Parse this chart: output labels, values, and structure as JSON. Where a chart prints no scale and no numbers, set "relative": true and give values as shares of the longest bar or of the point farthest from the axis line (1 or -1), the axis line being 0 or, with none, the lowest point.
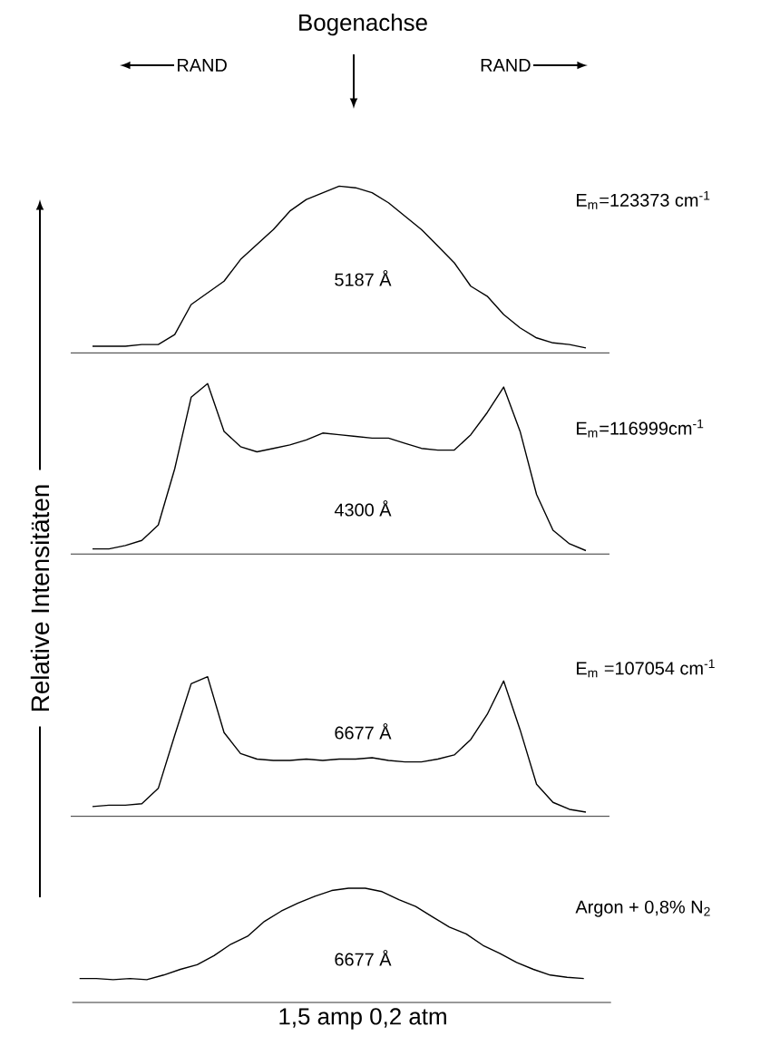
{
  "chart_data": [
    {
      "type": "line",
      "relative": true,
      "title": "Bogenachse",
      "ylabel": "Relative Intensitäten",
      "color": "#000000",
      "categories": [
        null,
        null,
        null,
        null,
        null,
        null,
        null,
        null,
        null,
        null,
        null,
        null,
        null,
        null,
        null,
        null,
        null,
        null,
        null,
        null,
        null,
        null,
        null,
        null,
        null,
        null,
        null,
        null,
        null,
        null,
        null
      ],
      "values": [
        0.04,
        0.04,
        0.04,
        0.05,
        0.05,
        0.11,
        0.29,
        0.36,
        0.43,
        0.56,
        0.65,
        0.74,
        0.85,
        0.92,
        0.96,
        1,
        0.99,
        0.96,
        0.9,
        0.82,
        0.74,
        0.64,
        0.54,
        0.4,
        0.34,
        0.23,
        0.15,
        0.09,
        0.06,
        0.05,
        0.03
      ],
      "annotations": [
        "RAND",
        "RAND",
        "5187 Å",
        "E$_{m}$=123373 cm$^{-1}$"
      ]
    },
    {
      "type": "line",
      "relative": true,
      "color": "#000000",
      "categories": [
        null,
        null,
        null,
        null,
        null,
        null,
        null,
        null,
        null,
        null,
        null,
        null,
        null,
        null,
        null,
        null,
        null,
        null,
        null,
        null,
        null,
        null,
        null,
        null,
        null,
        null,
        null,
        null,
        null,
        null,
        null
      ],
      "values": [
        0.03,
        0.03,
        0.05,
        0.08,
        0.17,
        0.5,
        0.92,
        1,
        0.72,
        0.63,
        0.6,
        0.62,
        0.64,
        0.67,
        0.71,
        0.7,
        0.69,
        0.68,
        0.68,
        0.65,
        0.62,
        0.61,
        0.61,
        0.7,
        0.83,
        0.98,
        0.72,
        0.35,
        0.14,
        0.06,
        0.02
      ],
      "annotations": [
        "4300 Å",
        "E$_{m}$=116999cm$^{-1}$"
      ]
    },
    {
      "type": "line",
      "relative": true,
      "color": "#000000",
      "categories": [
        null,
        null,
        null,
        null,
        null,
        null,
        null,
        null,
        null,
        null,
        null,
        null,
        null,
        null,
        null,
        null,
        null,
        null,
        null,
        null,
        null,
        null,
        null,
        null,
        null,
        null,
        null,
        null,
        null,
        null,
        null
      ],
      "values": [
        0.07,
        0.08,
        0.08,
        0.09,
        0.2,
        0.58,
        0.95,
        1,
        0.6,
        0.45,
        0.41,
        0.4,
        0.4,
        0.41,
        0.4,
        0.41,
        0.41,
        0.42,
        0.4,
        0.39,
        0.39,
        0.41,
        0.44,
        0.55,
        0.73,
        0.97,
        0.62,
        0.23,
        0.1,
        0.05,
        0.03
      ],
      "annotations": [
        "6677 Å",
        "E$_{m}$ =107054 cm$^{-1}$"
      ]
    },
    {
      "type": "line",
      "relative": true,
      "xlabel": "1,5 amp    0,2 atm",
      "color": "#000000",
      "categories": [
        null,
        null,
        null,
        null,
        null,
        null,
        null,
        null,
        null,
        null,
        null,
        null,
        null,
        null,
        null,
        null,
        null,
        null,
        null,
        null,
        null,
        null,
        null,
        null,
        null,
        null,
        null,
        null,
        null,
        null,
        null
      ],
      "values": [
        0.21,
        0.21,
        0.2,
        0.21,
        0.2,
        0.24,
        0.29,
        0.33,
        0.41,
        0.51,
        0.58,
        0.71,
        0.8,
        0.87,
        0.93,
        0.98,
        1,
        1,
        0.97,
        0.9,
        0.84,
        0.75,
        0.66,
        0.6,
        0.5,
        0.43,
        0.35,
        0.29,
        0.24,
        0.22,
        0.21
      ],
      "annotations": [
        "6677 Å",
        "Argon + 0,8% N$_{2}$"
      ]
    }
  ]
}
